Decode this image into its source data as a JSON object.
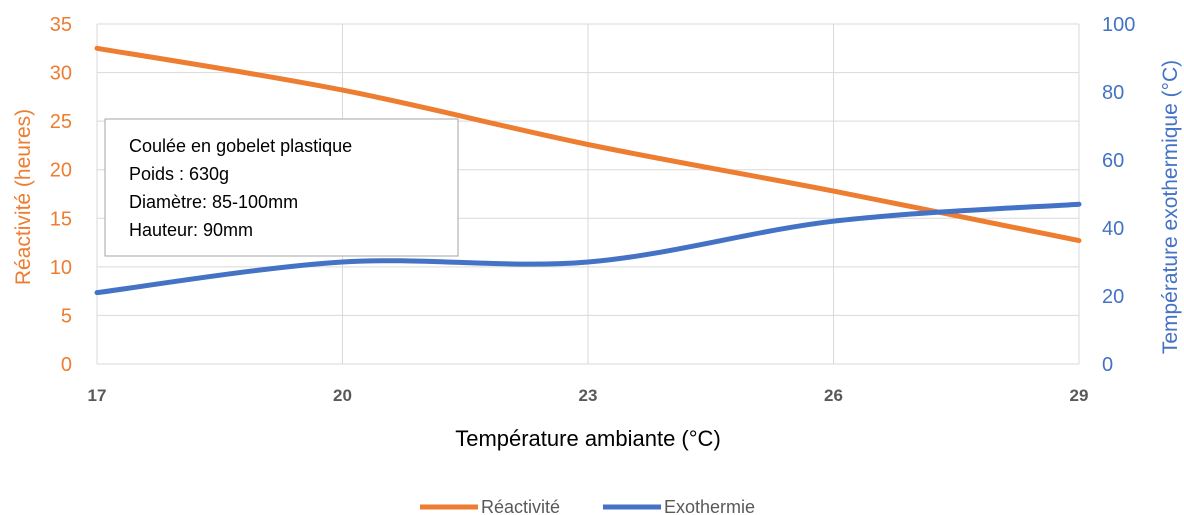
{
  "chart_data": {
    "type": "line",
    "x": [
      17,
      20,
      23,
      26,
      29
    ],
    "x_tick_labels": [
      "17",
      "20",
      "23",
      "26",
      "29"
    ],
    "xlabel": "Température ambiante (°C)",
    "xlim": [
      17,
      29
    ],
    "y_left": {
      "label": "Réactivité (heures)",
      "ticks": [
        "0",
        "5",
        "10",
        "15",
        "20",
        "25",
        "30",
        "35"
      ],
      "lim": [
        0,
        35
      ],
      "color": "#ED7D31"
    },
    "y_right": {
      "label": "Température exothermique (°C)",
      "ticks": [
        "0",
        "20",
        "40",
        "60",
        "80",
        "100"
      ],
      "lim": [
        0,
        100
      ],
      "color": "#4472C4"
    },
    "series": [
      {
        "name": "Réactivité",
        "axis": "left",
        "color": "#ED7D31",
        "x": [
          17,
          20,
          23,
          26,
          29
        ],
        "values": [
          32.5,
          28.2,
          22.6,
          17.8,
          12.7
        ]
      },
      {
        "name": "Exothermie",
        "axis": "right",
        "color": "#4472C4",
        "x": [
          17,
          20,
          23,
          26,
          29
        ],
        "values": [
          21,
          30,
          30,
          42,
          47
        ]
      }
    ],
    "annotation_lines": [
      "Coulée en gobelet plastique",
      "Poids : 630g",
      "Diamètre: 85-100mm",
      "Hauteur: 90mm"
    ],
    "grid": true,
    "legend_position": "bottom"
  }
}
